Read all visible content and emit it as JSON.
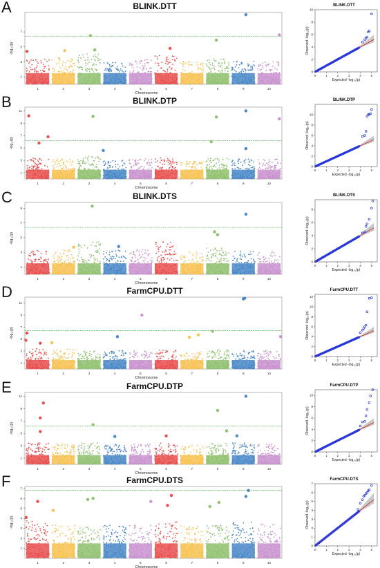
{
  "chart_data": [
    {
      "letter": "A",
      "type": "scatter",
      "title": "BLINK.DTT",
      "xlabel": "Chromosome",
      "ylabel": "-log₁₀(p)",
      "chromosomes": [
        "1",
        "2",
        "3",
        "4",
        "5",
        "6",
        "7",
        "8",
        "9",
        "10"
      ],
      "yticks": [
        1,
        3,
        5,
        7
      ],
      "ylim": [
        0,
        9.6
      ],
      "threshold": 6.4,
      "baseline_max": [
        3.3,
        3.6,
        4.1,
        3.0,
        3.3,
        3.8,
        3.0,
        3.4,
        3.1,
        3.0
      ],
      "peaks": [
        {
          "chrom": 1,
          "pos": 0.08,
          "y": 4.4
        },
        {
          "chrom": 2,
          "pos": 0.55,
          "y": 4.5
        },
        {
          "chrom": 3,
          "pos": 0.55,
          "y": 6.5
        },
        {
          "chrom": 3,
          "pos": 0.72,
          "y": 4.6
        },
        {
          "chrom": 6,
          "pos": 0.65,
          "y": 4.8
        },
        {
          "chrom": 8,
          "pos": 0.45,
          "y": 5.9
        },
        {
          "chrom": 9,
          "pos": 0.6,
          "y": 9.3
        },
        {
          "chrom": 10,
          "pos": 0.9,
          "y": 6.6
        }
      ],
      "qq": {
        "title": "BLINK.DTT",
        "xlabel": "Expected -log₁₀(p)",
        "ylabel": "Observed -log₁₀(p)",
        "xticks": [
          0,
          1,
          2,
          3,
          4,
          5
        ],
        "yticks": [
          0,
          2,
          4,
          6,
          8,
          10
        ],
        "ymax": 10,
        "tail": [
          [
            4.2,
            4.8
          ],
          [
            4.4,
            5.2
          ],
          [
            4.5,
            5.4
          ],
          [
            4.6,
            5.6
          ],
          [
            4.7,
            6.4
          ],
          [
            4.8,
            6.6
          ],
          [
            5.0,
            9.3
          ]
        ]
      }
    },
    {
      "letter": "B",
      "type": "scatter",
      "title": "BLINK.DTP",
      "xlabel": "Chromosome",
      "ylabel": "-log₁₀(p)",
      "chromosomes": [
        "1",
        "2",
        "3",
        "4",
        "5",
        "6",
        "7",
        "8",
        "9",
        "10"
      ],
      "yticks": [
        1,
        3,
        5,
        7,
        9,
        11
      ],
      "ylim": [
        0,
        11.6
      ],
      "threshold": 6.2,
      "baseline_max": [
        3.4,
        3.2,
        3.6,
        3.0,
        3.2,
        3.4,
        3.0,
        3.3,
        3.3,
        3.2
      ],
      "peaks": [
        {
          "chrom": 1,
          "pos": 0.15,
          "y": 10.2
        },
        {
          "chrom": 1,
          "pos": 0.55,
          "y": 5.8
        },
        {
          "chrom": 1,
          "pos": 0.9,
          "y": 6.8
        },
        {
          "chrom": 3,
          "pos": 0.65,
          "y": 10.1
        },
        {
          "chrom": 4,
          "pos": 0.05,
          "y": 4.6
        },
        {
          "chrom": 8,
          "pos": 0.25,
          "y": 6.0
        },
        {
          "chrom": 8,
          "pos": 0.45,
          "y": 10.0
        },
        {
          "chrom": 9,
          "pos": 0.6,
          "y": 11.0
        },
        {
          "chrom": 9,
          "pos": 0.6,
          "y": 4.9
        },
        {
          "chrom": 10,
          "pos": 0.9,
          "y": 9.7
        }
      ],
      "qq": {
        "title": "BLINK.DTP",
        "xlabel": "Expected -log₁₀(p)",
        "ylabel": "Observed -log₁₀(p)",
        "xticks": [
          0,
          1,
          2,
          3,
          4,
          5
        ],
        "yticks": [
          0,
          2,
          4,
          6,
          8,
          10
        ],
        "ymax": 12,
        "tail": [
          [
            4.2,
            5.8
          ],
          [
            4.4,
            6.0
          ],
          [
            4.5,
            6.8
          ],
          [
            4.6,
            9.7
          ],
          [
            4.7,
            10.0
          ],
          [
            4.8,
            10.1
          ],
          [
            4.9,
            10.2
          ],
          [
            5.0,
            11.0
          ]
        ]
      }
    },
    {
      "letter": "C",
      "type": "scatter",
      "title": "BLINK.DTS",
      "xlabel": "Chromosome",
      "ylabel": "-log₁₀(p)",
      "chromosomes": [
        "1",
        "2",
        "3",
        "4",
        "5",
        "6",
        "7",
        "8",
        "9",
        "10"
      ],
      "yticks": [
        1,
        3,
        5,
        7,
        9
      ],
      "ylim": [
        0,
        9.8
      ],
      "threshold": 6.4,
      "baseline_max": [
        3.2,
        3.3,
        4.4,
        3.3,
        3.4,
        4.4,
        3.0,
        3.6,
        3.1,
        3.0
      ],
      "peaks": [
        {
          "chrom": 2,
          "pos": 0.9,
          "y": 3.7
        },
        {
          "chrom": 3,
          "pos": 0.62,
          "y": 9.3
        },
        {
          "chrom": 4,
          "pos": 0.65,
          "y": 3.8
        },
        {
          "chrom": 8,
          "pos": 0.38,
          "y": 5.8
        },
        {
          "chrom": 8,
          "pos": 0.5,
          "y": 5.4
        },
        {
          "chrom": 9,
          "pos": 0.6,
          "y": 8.2
        }
      ],
      "qq": {
        "title": "BLINK.DTS",
        "xlabel": "Expected -log₁₀(p)",
        "ylabel": "Observed -log₁₀(p)",
        "xticks": [
          0,
          1,
          2,
          3,
          4,
          5
        ],
        "yticks": [
          0,
          2,
          4,
          6,
          8
        ],
        "ymax": 9.5,
        "tail": [
          [
            4.2,
            4.4
          ],
          [
            4.4,
            4.6
          ],
          [
            4.5,
            5.4
          ],
          [
            4.6,
            5.8
          ],
          [
            4.8,
            6.5
          ],
          [
            5.0,
            8.2
          ],
          [
            5.1,
            9.3
          ]
        ]
      }
    },
    {
      "letter": "D",
      "type": "scatter",
      "title": "FarmCPU.DTT",
      "xlabel": "Chromosome",
      "ylabel": "-log₁₀(p)",
      "chromosomes": [
        "1",
        "2",
        "3",
        "4",
        "5",
        "6",
        "7",
        "8",
        "9",
        "10"
      ],
      "yticks": [
        1,
        3,
        5,
        7,
        9,
        11
      ],
      "ylim": [
        0,
        12.0
      ],
      "threshold": 6.4,
      "baseline_max": [
        3.4,
        3.3,
        3.0,
        3.0,
        3.0,
        3.2,
        2.8,
        3.2,
        3.0,
        3.0
      ],
      "peaks": [
        {
          "chrom": 1,
          "pos": 0.08,
          "y": 6.0
        },
        {
          "chrom": 1,
          "pos": 0.04,
          "y": 4.8
        },
        {
          "chrom": 1,
          "pos": 0.6,
          "y": 4.3
        },
        {
          "chrom": 2,
          "pos": 0.05,
          "y": 4.4
        },
        {
          "chrom": 4,
          "pos": 0.6,
          "y": 5.4
        },
        {
          "chrom": 5,
          "pos": 0.55,
          "y": 9.0
        },
        {
          "chrom": 7,
          "pos": 0.4,
          "y": 5.3
        },
        {
          "chrom": 7,
          "pos": 0.75,
          "y": 5.7
        },
        {
          "chrom": 8,
          "pos": 0.3,
          "y": 6.3
        },
        {
          "chrom": 9,
          "pos": 0.5,
          "y": 11.7
        },
        {
          "chrom": 9,
          "pos": 0.55,
          "y": 11.8
        },
        {
          "chrom": 10,
          "pos": 0.95,
          "y": 5.4
        }
      ],
      "qq": {
        "title": "FarmCPU.DTT",
        "xlabel": "Expected -log₁₀(p)",
        "ylabel": "Observed -log₁₀(p)",
        "xticks": [
          0,
          1,
          2,
          3,
          4,
          5
        ],
        "yticks": [
          0,
          2,
          4,
          6,
          8,
          10,
          12
        ],
        "ymax": 12.5,
        "tail": [
          [
            4.0,
            4.8
          ],
          [
            4.2,
            5.3
          ],
          [
            4.3,
            5.7
          ],
          [
            4.4,
            6.0
          ],
          [
            4.5,
            6.3
          ],
          [
            4.6,
            9.0
          ],
          [
            4.8,
            11.7
          ],
          [
            5.0,
            11.8
          ]
        ]
      }
    },
    {
      "letter": "E",
      "type": "scatter",
      "title": "FarmCPU.DTP",
      "xlabel": "Chromosome",
      "ylabel": "-log₁₀(p)",
      "chromosomes": [
        "1",
        "2",
        "3",
        "4",
        "5",
        "6",
        "7",
        "8",
        "9",
        "10"
      ],
      "yticks": [
        1,
        3,
        5,
        7,
        9,
        11
      ],
      "ylim": [
        0,
        11.6
      ],
      "threshold": 6.2,
      "baseline_max": [
        3.4,
        3.3,
        3.4,
        3.2,
        3.2,
        3.4,
        3.0,
        3.4,
        3.4,
        3.2
      ],
      "peaks": [
        {
          "chrom": 1,
          "pos": 0.6,
          "y": 7.5
        },
        {
          "chrom": 1,
          "pos": 0.72,
          "y": 9.9
        },
        {
          "chrom": 1,
          "pos": 0.6,
          "y": 5.3
        },
        {
          "chrom": 3,
          "pos": 0.65,
          "y": 6.4
        },
        {
          "chrom": 4,
          "pos": 0.5,
          "y": 4.5
        },
        {
          "chrom": 6,
          "pos": 0.5,
          "y": 4.6
        },
        {
          "chrom": 8,
          "pos": 0.5,
          "y": 8.7
        },
        {
          "chrom": 8,
          "pos": 0.85,
          "y": 5.4
        },
        {
          "chrom": 9,
          "pos": 0.25,
          "y": 4.6
        },
        {
          "chrom": 9,
          "pos": 0.6,
          "y": 11.0
        }
      ],
      "qq": {
        "title": "FarmCPU.DTP",
        "xlabel": "Expected -log₁₀(p)",
        "ylabel": "Observed -log₁₀(p)",
        "xticks": [
          0,
          1,
          2,
          3,
          4,
          5
        ],
        "yticks": [
          0,
          2,
          4,
          6,
          8,
          10
        ],
        "ymax": 11,
        "tail": [
          [
            4.0,
            4.6
          ],
          [
            4.2,
            5.3
          ],
          [
            4.4,
            5.4
          ],
          [
            4.5,
            6.4
          ],
          [
            4.6,
            7.5
          ],
          [
            4.8,
            8.7
          ],
          [
            4.9,
            9.9
          ],
          [
            5.1,
            11.0
          ]
        ]
      }
    },
    {
      "letter": "F",
      "type": "scatter",
      "title": "FarmCPU.DTS",
      "xlabel": "Chromosome",
      "ylabel": "-log₁₀(p)",
      "chromosomes": [
        "1",
        "2",
        "3",
        "4",
        "5",
        "6",
        "7",
        "8",
        "9",
        "10"
      ],
      "yticks": [
        1,
        2,
        3,
        4,
        5,
        6,
        7
      ],
      "ylim": [
        0,
        7.2
      ],
      "threshold": 6.8,
      "baseline_max": [
        3.8,
        3.3,
        3.2,
        3.3,
        3.3,
        3.6,
        3.2,
        3.3,
        3.6,
        3.4
      ],
      "peaks": [
        {
          "chrom": 1,
          "pos": 0.05,
          "y": 4.1
        },
        {
          "chrom": 1,
          "pos": 0.5,
          "y": 5.7
        },
        {
          "chrom": 2,
          "pos": 0.1,
          "y": 4.8
        },
        {
          "chrom": 3,
          "pos": 0.45,
          "y": 5.9
        },
        {
          "chrom": 3,
          "pos": 0.65,
          "y": 6.0
        },
        {
          "chrom": 5,
          "pos": 0.9,
          "y": 5.7
        },
        {
          "chrom": 6,
          "pos": 0.55,
          "y": 5.3
        },
        {
          "chrom": 6,
          "pos": 0.7,
          "y": 6.3
        },
        {
          "chrom": 8,
          "pos": 0.2,
          "y": 5.2
        },
        {
          "chrom": 8,
          "pos": 0.55,
          "y": 5.6
        },
        {
          "chrom": 9,
          "pos": 0.6,
          "y": 6.2
        },
        {
          "chrom": 9,
          "pos": 0.7,
          "y": 6.8
        }
      ],
      "qq": {
        "title": "FarmCPU.DTS",
        "xlabel": "Expected -log₁₀(p)",
        "ylabel": "Observed -log₁₀(p)",
        "xticks": [
          0,
          1,
          2,
          3,
          4,
          5
        ],
        "yticks": [
          0,
          1,
          2,
          3,
          4,
          5,
          6,
          7
        ],
        "ymax": 7,
        "tail": [
          [
            3.8,
            4.1
          ],
          [
            4.0,
            4.8
          ],
          [
            4.2,
            5.2
          ],
          [
            4.3,
            5.6
          ],
          [
            4.4,
            5.7
          ],
          [
            4.5,
            5.9
          ],
          [
            4.6,
            6.0
          ],
          [
            4.7,
            6.2
          ],
          [
            4.8,
            6.3
          ],
          [
            5.0,
            6.8
          ]
        ]
      }
    }
  ],
  "colors": {
    "chromosomes": [
      "#e8504f",
      "#f7c252",
      "#8fc16f",
      "#4a88c8",
      "#c992cf",
      "#e8504f",
      "#f7c252",
      "#8fc16f",
      "#4a88c8",
      "#c992cf"
    ],
    "threshold": "#3aa83a",
    "qq_points": "#2233dd",
    "qq_line": "#d03030",
    "qq_band": "#bbbbbb"
  }
}
